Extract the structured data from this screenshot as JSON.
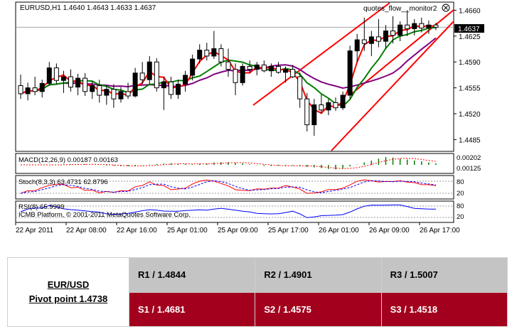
{
  "chart": {
    "symbol_info": "EURUSD,H1  1.4640 1.4643 1.4633 1.4637",
    "watermark": "quotes_flow__monitor2",
    "current_price": "1.4637",
    "price_ticks": [
      "1.4660",
      "1.4625",
      "1.4590",
      "1.4555",
      "1.4520",
      "1.4485"
    ],
    "time_labels": [
      "22 Apr 2011",
      "22 Apr 08:00",
      "22 Apr 16:00",
      "25 Apr 01:00",
      "25 Apr 09:00",
      "25 Apr 17:00",
      "26 Apr 01:00",
      "26 Apr 09:00",
      "26 Apr 17:00"
    ],
    "macd": {
      "label": "MACD(12,26,9) 0.00187 0.00163",
      "ticks": [
        "0.00202",
        "0.00125"
      ]
    },
    "stoch": {
      "label": "Stoch(8,3,3) 63.4731 62.8796",
      "ticks": [
        "80",
        "20"
      ]
    },
    "rsi": {
      "label": "RSI(8) 65.9999",
      "ticks": [
        "80",
        "20"
      ]
    },
    "copyright": "ICMB Platform, © 2001-2011 MetaQuotes Software Corp.",
    "colors": {
      "bull": "#000000",
      "bear": "#ffffff",
      "ma_fast": "#ff0000",
      "ma_mid": "#008000",
      "ma_slow": "#800080",
      "trendline": "#ff0000",
      "macd_hist": "#008000",
      "macd_signal": "#ff0000",
      "stoch_main": "#ff0000",
      "stoch_signal": "#0000ff",
      "rsi": "#0000ff"
    }
  },
  "chart_data": {
    "type": "candlestick",
    "symbol": "EURUSD",
    "timeframe": "H1",
    "ylim": [
      1.447,
      1.467
    ],
    "current": 1.4637,
    "candles": [
      [
        1.4558,
        1.4573,
        1.454,
        1.4547
      ],
      [
        1.4547,
        1.4562,
        1.4538,
        1.4555
      ],
      [
        1.4555,
        1.457,
        1.4545,
        1.455
      ],
      [
        1.455,
        1.4566,
        1.4542,
        1.4561
      ],
      [
        1.4561,
        1.459,
        1.4558,
        1.4582
      ],
      [
        1.4582,
        1.4588,
        1.456,
        1.4565
      ],
      [
        1.4565,
        1.4578,
        1.4548,
        1.457
      ],
      [
        1.457,
        1.458,
        1.455,
        1.4556
      ],
      [
        1.4556,
        1.4574,
        1.4545,
        1.4568
      ],
      [
        1.4568,
        1.4575,
        1.4544,
        1.455
      ],
      [
        1.455,
        1.4564,
        1.454,
        1.4558
      ],
      [
        1.4558,
        1.4566,
        1.4535,
        1.4545
      ],
      [
        1.4545,
        1.4558,
        1.4532,
        1.4553
      ],
      [
        1.4553,
        1.456,
        1.4528,
        1.454
      ],
      [
        1.454,
        1.4556,
        1.4535,
        1.455
      ],
      [
        1.455,
        1.4562,
        1.454,
        1.4544
      ],
      [
        1.4544,
        1.4582,
        1.4542,
        1.4575
      ],
      [
        1.4575,
        1.459,
        1.456,
        1.4566
      ],
      [
        1.4566,
        1.4598,
        1.456,
        1.459
      ],
      [
        1.459,
        1.4595,
        1.455,
        1.4555
      ],
      [
        1.4555,
        1.457,
        1.4525,
        1.4563
      ],
      [
        1.4563,
        1.457,
        1.454,
        1.4546
      ],
      [
        1.4546,
        1.4566,
        1.454,
        1.456
      ],
      [
        1.456,
        1.4578,
        1.455,
        1.4572
      ],
      [
        1.4572,
        1.46,
        1.4565,
        1.4594
      ],
      [
        1.4594,
        1.4614,
        1.4588,
        1.4606
      ],
      [
        1.4606,
        1.4616,
        1.4592,
        1.4598
      ],
      [
        1.4598,
        1.4632,
        1.4594,
        1.4608
      ],
      [
        1.4608,
        1.4614,
        1.4584,
        1.459
      ],
      [
        1.459,
        1.4608,
        1.457,
        1.458
      ],
      [
        1.458,
        1.4588,
        1.4545,
        1.4562
      ],
      [
        1.4562,
        1.4588,
        1.4558,
        1.4584
      ],
      [
        1.4584,
        1.4592,
        1.4575,
        1.458
      ],
      [
        1.458,
        1.459,
        1.4572,
        1.4586
      ],
      [
        1.4586,
        1.4592,
        1.4576,
        1.4578
      ],
      [
        1.4578,
        1.4588,
        1.457,
        1.4584
      ],
      [
        1.4584,
        1.459,
        1.4574,
        1.4576
      ],
      [
        1.4576,
        1.4584,
        1.4562,
        1.458
      ],
      [
        1.458,
        1.4586,
        1.4568,
        1.457
      ],
      [
        1.457,
        1.4576,
        1.4528,
        1.454
      ],
      [
        1.454,
        1.4548,
        1.4496,
        1.4505
      ],
      [
        1.4505,
        1.454,
        1.449,
        1.4532
      ],
      [
        1.4532,
        1.4546,
        1.452,
        1.4525
      ],
      [
        1.4525,
        1.454,
        1.4518,
        1.4535
      ],
      [
        1.4535,
        1.4542,
        1.4524,
        1.4528
      ],
      [
        1.4528,
        1.455,
        1.4525,
        1.4545
      ],
      [
        1.4545,
        1.4612,
        1.454,
        1.4605
      ],
      [
        1.4605,
        1.4628,
        1.459,
        1.462
      ],
      [
        1.462,
        1.465,
        1.4605,
        1.4615
      ],
      [
        1.4615,
        1.4632,
        1.4598,
        1.4624
      ],
      [
        1.4624,
        1.4648,
        1.461,
        1.4618
      ],
      [
        1.4618,
        1.464,
        1.4608,
        1.4632
      ],
      [
        1.4632,
        1.4652,
        1.4615,
        1.4626
      ],
      [
        1.4626,
        1.4645,
        1.4618,
        1.464
      ],
      [
        1.464,
        1.466,
        1.4625,
        1.4635
      ],
      [
        1.4635,
        1.4648,
        1.4626,
        1.4642
      ],
      [
        1.4642,
        1.465,
        1.463,
        1.4636
      ],
      [
        1.4636,
        1.4646,
        1.4628,
        1.464
      ],
      [
        1.464,
        1.4643,
        1.4633,
        1.4637
      ]
    ],
    "macd_signal_value": 0.00163,
    "macd_value": 0.00187,
    "stoch_value": 63.4731,
    "stoch_signal_value": 62.8796,
    "rsi_value": 65.9999
  },
  "pivot": {
    "pair": "EUR/USD",
    "pivot_text": "Pivot point 1.4738",
    "r1": "R1 / 1.4844",
    "r2": "R2 / 1.4901",
    "r3": "R3 / 1.5007",
    "s1": "S1 / 1.4681",
    "s2": "S2 / 1.4575",
    "s3": "S3 / 1.4518"
  }
}
